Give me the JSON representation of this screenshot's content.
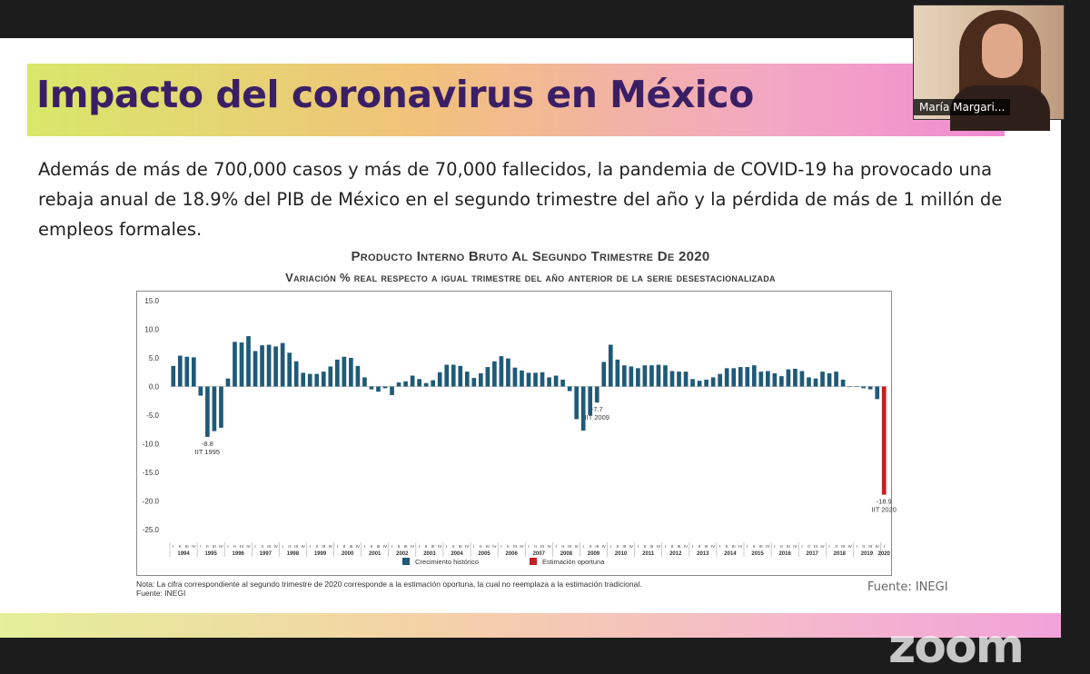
{
  "slide": {
    "title": "Impacto del coronavirus en México",
    "body": "Además de más de 700,000 casos y más de 70,000 fallecidos, la pandemia de COVID-19 ha provocado una rebaja anual de 18.9% del PIB de México en el segundo trimestre del año y la pérdida de más de 1 millón de empleos formales.",
    "source": "Fuente: INEGI",
    "note_line1": "Nota: La cifra correspondiente al segundo trimestre de 2020 corresponde a la estimación oportuna, la cual no reemplaza a la estimación tradicional.",
    "note_line2": "Fuente: INEGI"
  },
  "participant": {
    "name": "María Margari..."
  },
  "zoom": {
    "logo": "zoom"
  },
  "chart_data": {
    "type": "bar",
    "title": "Producto Interno Bruto Al Segundo Trimestre De 2020",
    "subtitle": "Variación % real respecto a igual trimestre del año anterior de la serie desestacionalizada",
    "ylim": [
      -25,
      15
    ],
    "yticks": [
      "15.0",
      "10.0",
      "5.0",
      "0.0",
      "-5.0",
      "-10.0",
      "-15.0",
      "-20.0",
      "-25.0"
    ],
    "years": [
      "1994",
      "1995",
      "1996",
      "1997",
      "1998",
      "1999",
      "2000",
      "2001",
      "2002",
      "2003",
      "2004",
      "2005",
      "2006",
      "2007",
      "2008",
      "2009",
      "2010",
      "2011",
      "2012",
      "2013",
      "2014",
      "2015",
      "2016",
      "2017",
      "2018",
      "2019",
      "2020"
    ],
    "quarter_labels": [
      "I",
      "II",
      "III",
      "IV"
    ],
    "series": [
      {
        "name": "Crecimiento histórico",
        "color": "#1f5a78",
        "values": [
          3.6,
          5.4,
          5.2,
          5.1,
          -1.6,
          -8.8,
          -7.8,
          -7.2,
          1.4,
          7.8,
          7.7,
          8.8,
          6.2,
          7.2,
          7.3,
          7.0,
          7.6,
          5.9,
          4.4,
          2.4,
          2.2,
          2.2,
          2.6,
          3.5,
          4.7,
          5.2,
          5.0,
          3.6,
          1.6,
          -0.5,
          -0.9,
          -0.3,
          -1.5,
          0.7,
          0.9,
          1.9,
          1.3,
          0.6,
          1.1,
          2.5,
          3.8,
          3.8,
          3.6,
          2.6,
          1.5,
          2.3,
          3.4,
          4.4,
          5.3,
          4.9,
          3.3,
          2.8,
          2.4,
          2.4,
          2.5,
          1.6,
          1.9,
          1.2,
          -0.8,
          -5.7,
          -7.7,
          -5.0,
          -2.8,
          4.3,
          7.3,
          4.7,
          3.7,
          3.5,
          3.2,
          3.7,
          3.7,
          3.8,
          3.7,
          2.7,
          2.6,
          2.6,
          1.3,
          1.0,
          1.2,
          1.6,
          2.2,
          3.2,
          3.2,
          3.4,
          3.4,
          3.7,
          2.6,
          2.7,
          2.3,
          1.8,
          3.0,
          3.1,
          2.7,
          1.6,
          1.4,
          2.6,
          2.3,
          2.6,
          1.2,
          0.0,
          0.0,
          -0.3,
          -0.5,
          -2.2
        ]
      },
      {
        "name": "Estimación oportuna",
        "color": "#c41e24",
        "values": [
          -18.9
        ]
      }
    ],
    "annotations": [
      {
        "label": "-8.8",
        "sub": "IIT 1995"
      },
      {
        "label": "-7.7",
        "sub": "IIT 2009"
      },
      {
        "label": "-18.9",
        "sub": "IIT 2020"
      }
    ],
    "legend_placement": "bottom-center",
    "grid": false
  }
}
